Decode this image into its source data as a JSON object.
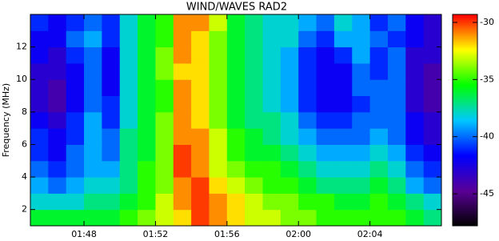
{
  "chart_data": {
    "type": "heatmap",
    "title": "WIND/WAVES RAD2",
    "ylabel": "Frequency (MHz)",
    "x": [
      105.5,
      106.5,
      107.5,
      108.5,
      109.5,
      110.5,
      111.5,
      112.5,
      113.5,
      114.5,
      115.5,
      116.5,
      117.5,
      118.5,
      119.5,
      120.5,
      121.5,
      122.5,
      123.5,
      124.5,
      125.5,
      126.5,
      127.5
    ],
    "y": [
      1.5,
      2.5,
      3.5,
      4.5,
      5.5,
      6.5,
      7.5,
      8.5,
      9.5,
      10.5,
      11.5,
      12.5,
      13.5
    ],
    "z": [
      [
        -36,
        -36,
        -36,
        -36,
        -36,
        -35,
        -34,
        -33,
        -32,
        -30,
        -31,
        -32,
        -33,
        -33,
        -34,
        -34,
        -35,
        -35,
        -35,
        -35,
        -35,
        -36,
        -37
      ],
      [
        -38,
        -38,
        -38,
        -37,
        -37,
        -36,
        -35,
        -33,
        -31,
        -30,
        -31,
        -32,
        -33,
        -34,
        -34,
        -35,
        -35,
        -36,
        -36,
        -35,
        -36,
        -37,
        -38
      ],
      [
        -39,
        -40,
        -39,
        -38,
        -38,
        -37,
        -35,
        -34,
        -31,
        -30,
        -32,
        -33,
        -34,
        -35,
        -35,
        -36,
        -37,
        -37,
        -37,
        -36,
        -37,
        -39,
        -40
      ],
      [
        -40,
        -41,
        -40,
        -39,
        -39,
        -37,
        -35,
        -34,
        -30,
        -31,
        -33,
        -34,
        -35,
        -35,
        -36,
        -37,
        -38,
        -38,
        -38,
        -37,
        -38,
        -40,
        -41
      ],
      [
        -41,
        -42,
        -40,
        -39,
        -40,
        -37,
        -36,
        -34,
        -30,
        -31,
        -33,
        -35,
        -36,
        -36,
        -37,
        -38,
        -39,
        -39,
        -39,
        -38,
        -39,
        -41,
        -42
      ],
      [
        -41,
        -42,
        -41,
        -39,
        -40,
        -37,
        -36,
        -34,
        -31,
        -31,
        -33,
        -35,
        -36,
        -37,
        -38,
        -39,
        -40,
        -40,
        -40,
        -39,
        -40,
        -42,
        -43
      ],
      [
        -42,
        -43,
        -41,
        -39,
        -41,
        -38,
        -36,
        -34,
        -31,
        -32,
        -34,
        -36,
        -37,
        -37,
        -38,
        -40,
        -41,
        -41,
        -40,
        -40,
        -40,
        -42,
        -43
      ],
      [
        -43,
        -44,
        -42,
        -40,
        -41,
        -38,
        -36,
        -35,
        -31,
        -32,
        -34,
        -36,
        -37,
        -38,
        -39,
        -41,
        -42,
        -42,
        -41,
        -40,
        -40,
        -43,
        -44
      ],
      [
        -43,
        -44,
        -42,
        -40,
        -42,
        -38,
        -36,
        -35,
        -31,
        -32,
        -34,
        -36,
        -37,
        -38,
        -39,
        -41,
        -42,
        -42,
        -40,
        -40,
        -40,
        -43,
        -44
      ],
      [
        -43,
        -43,
        -42,
        -40,
        -42,
        -38,
        -36,
        -34,
        -32,
        -32,
        -34,
        -36,
        -37,
        -38,
        -39,
        -41,
        -42,
        -42,
        -40,
        -41,
        -40,
        -43,
        -44
      ],
      [
        -42,
        -43,
        -41,
        -40,
        -42,
        -38,
        -36,
        -34,
        -31,
        -32,
        -34,
        -36,
        -37,
        -38,
        -39,
        -41,
        -42,
        -41,
        -39,
        -41,
        -40,
        -43,
        -43
      ],
      [
        -42,
        -42,
        -40,
        -39,
        -41,
        -38,
        -36,
        -35,
        -31,
        -32,
        -34,
        -36,
        -37,
        -38,
        -38,
        -40,
        -41,
        -39,
        -39,
        -40,
        -41,
        -42,
        -43
      ],
      [
        -41,
        -42,
        -41,
        -40,
        -41,
        -38,
        -36,
        -35,
        -31,
        -31,
        -33,
        -36,
        -37,
        -38,
        -38,
        -39,
        -40,
        -38,
        -39,
        -41,
        -40,
        -42,
        -43
      ]
    ],
    "xlim": [
      105,
      128
    ],
    "xticks": [
      {
        "value": 108,
        "label": "01:48"
      },
      {
        "value": 112,
        "label": "01:52"
      },
      {
        "value": 116,
        "label": "01:56"
      },
      {
        "value": 120,
        "label": "02:00"
      },
      {
        "value": 124,
        "label": "02:04"
      }
    ],
    "ylim": [
      1,
      14
    ],
    "yticks": [
      2,
      4,
      6,
      8,
      10,
      12
    ],
    "clim": [
      -47.8,
      -29.3
    ],
    "colorbar_ticks": [
      -30,
      -35,
      -40,
      -45
    ],
    "colorscale": [
      "#000000",
      "#5a0096",
      "#0000ff",
      "#00c8ff",
      "#00ff00",
      "#ffff00",
      "#ff0000"
    ]
  }
}
